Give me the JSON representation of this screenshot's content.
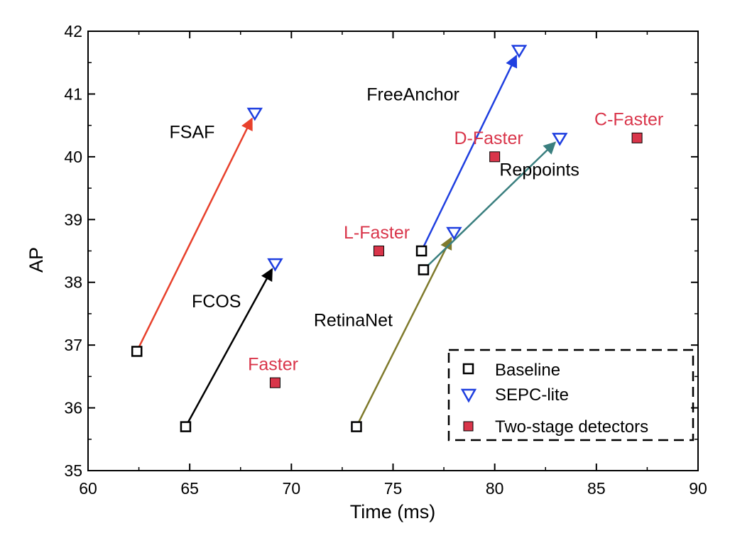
{
  "chart_data": {
    "type": "scatter",
    "title": "",
    "xlabel": "Time (ms)",
    "ylabel": "AP",
    "xlim": [
      60,
      90
    ],
    "ylim": [
      35,
      42
    ],
    "xticks": [
      60,
      65,
      70,
      75,
      80,
      85,
      90
    ],
    "yticks": [
      35,
      36,
      37,
      38,
      39,
      40,
      41,
      42
    ],
    "grid": false,
    "legend_position": "bottom-right",
    "legend": [
      {
        "key": "baseline",
        "label": "Baseline"
      },
      {
        "key": "sepc",
        "label": "SEPC-lite"
      },
      {
        "key": "twostage",
        "label": "Two-stage detectors"
      }
    ],
    "series": [
      {
        "name": "Baseline",
        "points": [
          {
            "label": "FSAF",
            "x": 62.4,
            "y": 36.9
          },
          {
            "label": "FCOS",
            "x": 64.8,
            "y": 35.7
          },
          {
            "label": "RetinaNet",
            "x": 73.2,
            "y": 35.7
          },
          {
            "label": "FreeAnchor",
            "x": 76.4,
            "y": 38.5
          },
          {
            "label": "Reppoints",
            "x": 76.5,
            "y": 38.2
          }
        ]
      },
      {
        "name": "SEPC-lite",
        "points": [
          {
            "label": "FSAF",
            "x": 68.2,
            "y": 40.7
          },
          {
            "label": "FCOS",
            "x": 69.2,
            "y": 38.3
          },
          {
            "label": "RetinaNet",
            "x": 78.0,
            "y": 38.8
          },
          {
            "label": "FreeAnchor",
            "x": 81.2,
            "y": 41.7
          },
          {
            "label": "Reppoints",
            "x": 83.2,
            "y": 40.3
          }
        ]
      },
      {
        "name": "Two-stage detectors",
        "points": [
          {
            "label": "Faster",
            "x": 69.2,
            "y": 36.4
          },
          {
            "label": "L-Faster",
            "x": 74.3,
            "y": 38.5
          },
          {
            "label": "D-Faster",
            "x": 80.0,
            "y": 40.0
          },
          {
            "label": "C-Faster",
            "x": 87.0,
            "y": 40.3
          }
        ]
      }
    ],
    "arrows": [
      {
        "name": "FSAF",
        "from": [
          62.4,
          36.9
        ],
        "to": [
          68.2,
          40.7
        ],
        "color": "#e8412c"
      },
      {
        "name": "FCOS",
        "from": [
          64.8,
          35.7
        ],
        "to": [
          69.2,
          38.3
        ],
        "color": "#000000"
      },
      {
        "name": "RetinaNet",
        "from": [
          73.2,
          35.7
        ],
        "to": [
          78.0,
          38.8
        ],
        "color": "#7f7a2c"
      },
      {
        "name": "FreeAnchor",
        "from": [
          76.4,
          38.5
        ],
        "to": [
          81.2,
          41.7
        ],
        "color": "#1f3fe0"
      },
      {
        "name": "Reppoints",
        "from": [
          76.5,
          38.2
        ],
        "to": [
          83.2,
          40.3
        ],
        "color": "#3a7f7f"
      }
    ],
    "annotations": [
      {
        "text": "FSAF",
        "x": 64.0,
        "y": 40.3,
        "color": "#000000",
        "anchor": "start"
      },
      {
        "text": "FCOS",
        "x": 65.1,
        "y": 37.6,
        "color": "#000000",
        "anchor": "start"
      },
      {
        "text": "RetinaNet",
        "x": 71.1,
        "y": 37.3,
        "color": "#000000",
        "anchor": "start"
      },
      {
        "text": "FreeAnchor",
        "x": 73.7,
        "y": 40.9,
        "color": "#000000",
        "anchor": "start"
      },
      {
        "text": "Reppoints",
        "x": 82.2,
        "y": 39.7,
        "color": "#000000",
        "anchor": "middle"
      },
      {
        "text": "Faster",
        "x": 69.1,
        "y": 36.6,
        "color": "#d9354a",
        "anchor": "middle"
      },
      {
        "text": "L-Faster",
        "x": 74.2,
        "y": 38.7,
        "color": "#d9354a",
        "anchor": "middle"
      },
      {
        "text": "D-Faster",
        "x": 79.7,
        "y": 40.2,
        "color": "#d9354a",
        "anchor": "middle"
      },
      {
        "text": "C-Faster",
        "x": 86.6,
        "y": 40.5,
        "color": "#d9354a",
        "anchor": "middle"
      }
    ],
    "colors": {
      "baseline_marker": "#000000",
      "sepc_marker": "#1f3fe0",
      "twostage_marker": "#d9354a",
      "axis": "#000000"
    }
  }
}
